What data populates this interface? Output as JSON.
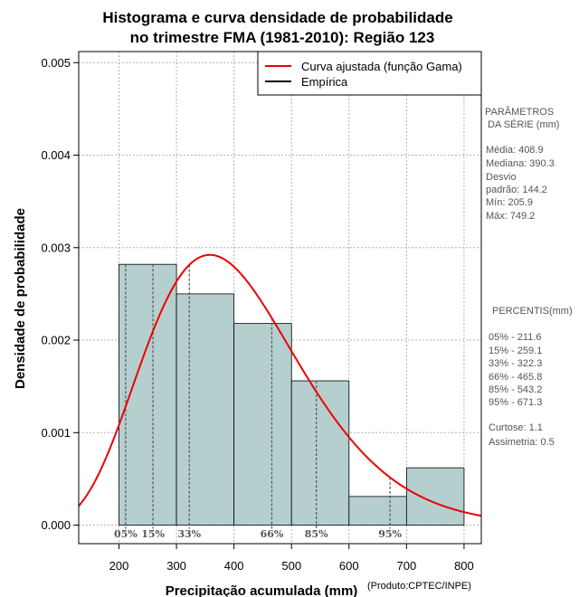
{
  "chart_data": {
    "type": "bar",
    "title": [
      "Histograma e curva densidade de probabilidade",
      "no trimestre FMA (1981-2010): Região 123"
    ],
    "xlabel": "Precipitação acumulada (mm)",
    "ylabel": "Densidade de probabilidade",
    "xlim": [
      130,
      830
    ],
    "ylim": [
      -0.0002,
      0.00512
    ],
    "xticks": [
      200,
      300,
      400,
      500,
      600,
      700,
      800
    ],
    "xtick_labels": [
      "200",
      "300",
      "400",
      "500",
      "600",
      "700",
      "800"
    ],
    "yticks": [
      0,
      0.001,
      0.002,
      0.003,
      0.004,
      0.005
    ],
    "ytick_labels": [
      "0.000",
      "0.001",
      "0.002",
      "0.003",
      "0.004",
      "0.005"
    ],
    "grid": true,
    "bins": [
      {
        "from": 200,
        "to": 300,
        "density": 0.00282
      },
      {
        "from": 300,
        "to": 400,
        "density": 0.0025
      },
      {
        "from": 400,
        "to": 500,
        "density": 0.00218
      },
      {
        "from": 500,
        "to": 600,
        "density": 0.00156
      },
      {
        "from": 600,
        "to": 700,
        "density": 0.00031
      },
      {
        "from": 700,
        "to": 800,
        "density": 0.00062
      }
    ],
    "bar_color": "#b5cfcf",
    "fitted_curve": {
      "name": "Curva ajustada (função Gama)",
      "distribution": "gamma",
      "mean": 408.9,
      "sd": 144.2,
      "color": "#ee0000"
    },
    "legend": {
      "position": "top-right",
      "entries": [
        {
          "label": "Curva ajustada (função Gama)",
          "color": "#ee0000"
        },
        {
          "label": "Empírica",
          "color": "#000000"
        }
      ]
    },
    "percentiles": [
      {
        "label": "05%",
        "value": 211.6
      },
      {
        "label": "15%",
        "value": 259.1
      },
      {
        "label": "33%",
        "value": 322.3
      },
      {
        "label": "66%",
        "value": 465.8
      },
      {
        "label": "85%",
        "value": 543.2
      },
      {
        "label": "95%",
        "value": 671.3
      }
    ]
  },
  "side_panel": {
    "params_title_1": "PARÂMETROS",
    "params_title_2": "DA SÉRIE (mm)",
    "media": "Média:  408.9",
    "mediana": "Mediana:  390.3",
    "desvio_1": "Desvio",
    "desvio_2": "padrão:  144.2",
    "min": "Mín:  205.9",
    "max": "Máx:  749.2",
    "percentis_title": "PERCENTIS(mm)",
    "p05": "05% -   211.6",
    "p15": "15% -   259.1",
    "p33": "33% -   322.3",
    "p66": "66% -   465.8",
    "p85": "85% -   543.2",
    "p95": "95% -   671.3",
    "curtose": "Curtose:  1.1",
    "assimetria": "Assimetria:  0.5"
  },
  "credit": "(Produto:CPTEC/INPE)"
}
